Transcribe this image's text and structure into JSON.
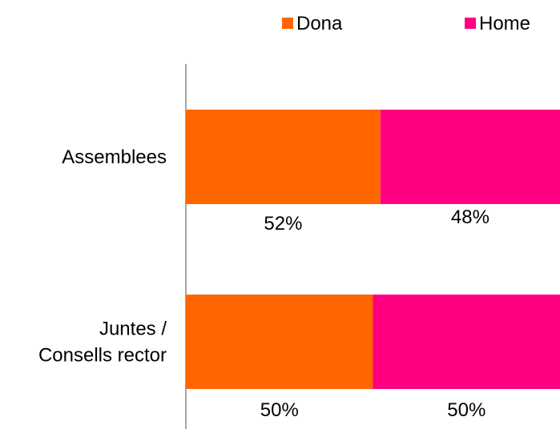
{
  "chart_data": {
    "type": "bar",
    "orientation": "horizontal",
    "stacked": "percent",
    "categories": [
      "Assemblees",
      "Juntes / Consells rector"
    ],
    "category_lines": [
      [
        "Assemblees"
      ],
      [
        "Juntes /",
        "Consells rector"
      ]
    ],
    "series": [
      {
        "name": "Dona",
        "color": "#FF6600",
        "values": [
          52,
          50
        ],
        "labels": [
          "52%",
          "50%"
        ]
      },
      {
        "name": "Home",
        "color": "#FF0080",
        "values": [
          48,
          50
        ],
        "labels": [
          "48%",
          "50%"
        ]
      }
    ],
    "xlim": [
      0,
      100
    ],
    "legend": {
      "position": "top-right",
      "items": [
        "Dona",
        "Home"
      ]
    },
    "grid": false
  }
}
